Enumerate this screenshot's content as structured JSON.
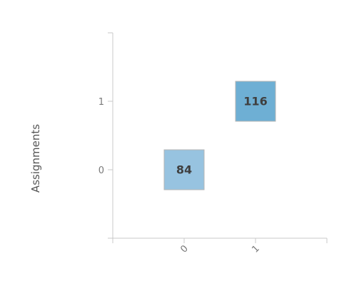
{
  "chart_data": {
    "type": "heatmap",
    "x_categories": [
      "0",
      "1"
    ],
    "y_categories": [
      "0",
      "1"
    ],
    "ylabel": "Assignments",
    "xlabel": "",
    "cells": [
      {
        "x": "0",
        "y": "0",
        "value": 84,
        "label": "84",
        "color": "#97c3e0"
      },
      {
        "x": "1",
        "y": "1",
        "value": 116,
        "label": "116",
        "color": "#6eafd4"
      }
    ],
    "grid": false,
    "legend": "none"
  }
}
